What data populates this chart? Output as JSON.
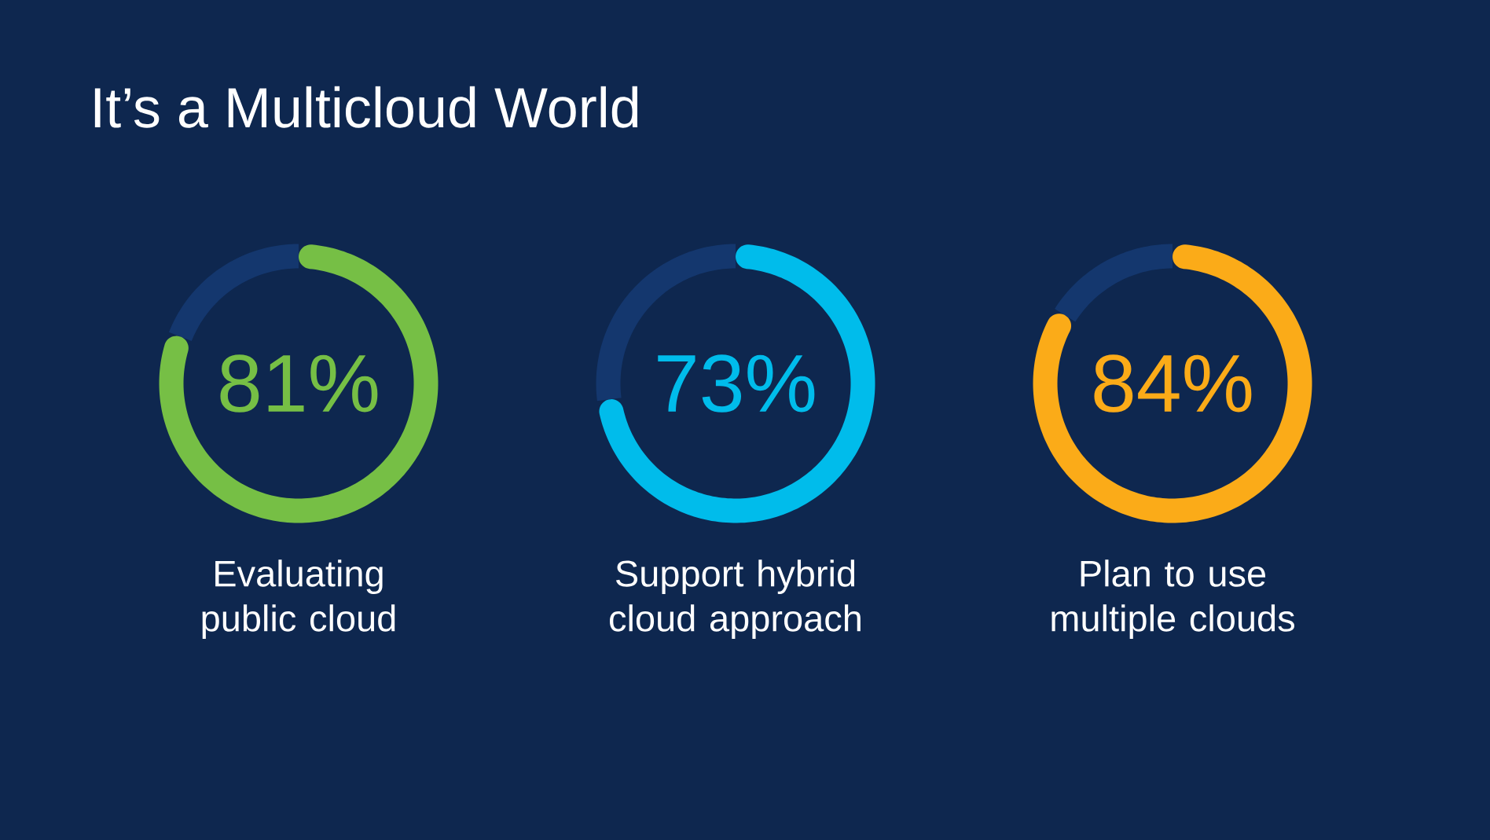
{
  "chart_data": [
    {
      "type": "donut",
      "title": "It’s a Multicloud World",
      "categories": [
        "Evaluating public cloud",
        null
      ],
      "values": [
        81,
        19
      ],
      "colors": [
        "#76bf45",
        "#14376e"
      ],
      "value_labels": [
        "81%",
        null
      ]
    },
    {
      "type": "donut",
      "categories": [
        "Support hybrid cloud approach",
        null
      ],
      "values": [
        73,
        27
      ],
      "colors": [
        "#00bceb",
        "#14376e"
      ],
      "value_labels": [
        "73%",
        null
      ]
    },
    {
      "type": "donut",
      "categories": [
        "Plan to use multiple clouds",
        null
      ],
      "values": [
        84,
        16
      ],
      "colors": [
        "#fbab18",
        "#14376e"
      ],
      "value_labels": [
        "84%",
        null
      ]
    }
  ]
}
